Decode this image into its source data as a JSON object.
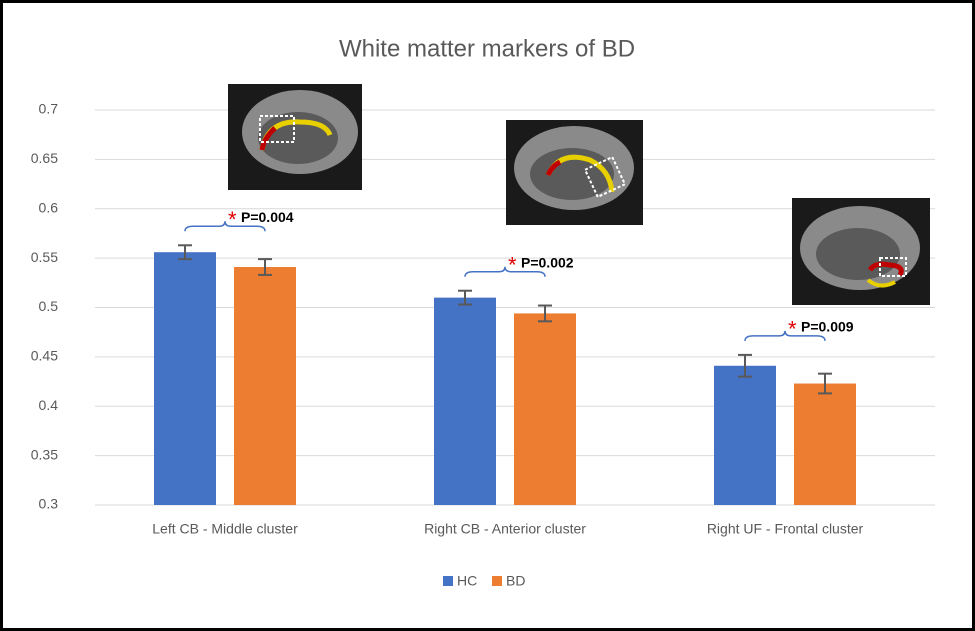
{
  "chart_data": {
    "type": "bar",
    "title": "White matter markers of BD",
    "categories": [
      "Left CB - Middle cluster",
      "Right CB - Anterior cluster",
      "Right UF - Frontal cluster"
    ],
    "series": [
      {
        "name": "HC",
        "color": "#4472c4",
        "values": [
          0.556,
          0.51,
          0.441
        ],
        "errors": [
          0.007,
          0.007,
          0.011
        ]
      },
      {
        "name": "BD",
        "color": "#ed7d31",
        "values": [
          0.541,
          0.494,
          0.423
        ],
        "errors": [
          0.008,
          0.008,
          0.01
        ]
      }
    ],
    "annotations": [
      {
        "star": "*",
        "text": "P=0.004"
      },
      {
        "star": "*",
        "text": "P=0.002"
      },
      {
        "star": "*",
        "text": "P=0.009"
      }
    ],
    "ylim": [
      0.3,
      0.7
    ],
    "yticks": [
      0.3,
      0.35,
      0.4,
      0.45,
      0.5,
      0.55,
      0.6,
      0.65,
      0.7
    ],
    "grid": true,
    "legend": "bottom"
  }
}
